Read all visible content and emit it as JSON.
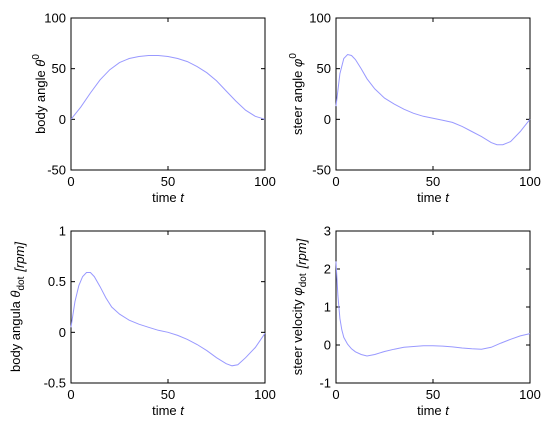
{
  "chart_data": [
    {
      "type": "line",
      "xlabel": {
        "main": "time ",
        "italic": "t"
      },
      "ylabel": {
        "main": "body angle ",
        "italic": "θ",
        "sup": "0"
      },
      "xlim": [
        0,
        100
      ],
      "ylim": [
        -50,
        100
      ],
      "xticks": [
        0,
        50,
        100
      ],
      "yticks": [
        -50,
        0,
        50,
        100
      ],
      "grid": false,
      "line_color": "#9999ff",
      "series": [
        {
          "x": [
            0,
            5,
            10,
            15,
            20,
            25,
            30,
            35,
            40,
            45,
            50,
            55,
            60,
            65,
            70,
            75,
            80,
            85,
            90,
            95,
            100
          ],
          "values": [
            0,
            12,
            26,
            39,
            49,
            56,
            60,
            62,
            63,
            63,
            62,
            60,
            57,
            52,
            46,
            38,
            28,
            18,
            9,
            3,
            0
          ]
        }
      ]
    },
    {
      "type": "line",
      "xlabel": {
        "main": "time ",
        "italic": "t"
      },
      "ylabel": {
        "main": "steer angle ",
        "italic": "φ",
        "sup": "0"
      },
      "xlim": [
        0,
        100
      ],
      "ylim": [
        -50,
        100
      ],
      "xticks": [
        0,
        50,
        100
      ],
      "yticks": [
        -50,
        0,
        50,
        100
      ],
      "grid": false,
      "line_color": "#9999ff",
      "series": [
        {
          "x": [
            0,
            2,
            4,
            6,
            8,
            10,
            13,
            16,
            20,
            25,
            30,
            35,
            40,
            45,
            50,
            55,
            60,
            65,
            70,
            75,
            80,
            83,
            86,
            90,
            95,
            100
          ],
          "values": [
            13,
            45,
            60,
            64,
            63,
            59,
            50,
            40,
            30,
            21,
            15,
            10,
            6,
            3,
            1,
            -1,
            -3,
            -7,
            -12,
            -17,
            -23,
            -25,
            -25,
            -22,
            -12,
            0
          ]
        }
      ]
    },
    {
      "type": "line",
      "xlabel": {
        "main": "time ",
        "italic": "t"
      },
      "ylabel": {
        "main": "body angula ",
        "italic": "θ",
        "sub": "dot",
        "unit": "[rpm]"
      },
      "xlim": [
        0,
        100
      ],
      "ylim": [
        -0.5,
        1
      ],
      "xticks": [
        0,
        50,
        100
      ],
      "yticks": [
        -0.5,
        0,
        0.5,
        1
      ],
      "grid": false,
      "line_color": "#9999ff",
      "series": [
        {
          "x": [
            0,
            2,
            4,
            6,
            8,
            10,
            12,
            15,
            18,
            21,
            25,
            30,
            35,
            40,
            45,
            50,
            55,
            60,
            65,
            70,
            75,
            80,
            83,
            86,
            90,
            95,
            100
          ],
          "values": [
            0.05,
            0.3,
            0.46,
            0.55,
            0.59,
            0.59,
            0.55,
            0.45,
            0.34,
            0.25,
            0.18,
            0.12,
            0.08,
            0.05,
            0.02,
            0,
            -0.03,
            -0.07,
            -0.12,
            -0.18,
            -0.25,
            -0.31,
            -0.33,
            -0.32,
            -0.25,
            -0.15,
            -0.01
          ]
        }
      ]
    },
    {
      "type": "line",
      "xlabel": {
        "main": "time ",
        "italic": "t"
      },
      "ylabel": {
        "main": "steer velocity ",
        "italic": "φ",
        "sub": "dot",
        "unit": "[rpm]"
      },
      "xlim": [
        0,
        100
      ],
      "ylim": [
        -1,
        3
      ],
      "xticks": [
        0,
        50,
        100
      ],
      "yticks": [
        -1,
        0,
        1,
        2,
        3
      ],
      "grid": false,
      "line_color": "#9999ff",
      "series": [
        {
          "x": [
            0,
            1,
            2,
            3,
            4,
            6,
            8,
            10,
            13,
            16,
            20,
            25,
            30,
            35,
            40,
            45,
            50,
            55,
            60,
            65,
            70,
            75,
            80,
            85,
            90,
            95,
            100
          ],
          "values": [
            2.2,
            1.3,
            0.7,
            0.4,
            0.2,
            0.02,
            -0.1,
            -0.18,
            -0.25,
            -0.29,
            -0.25,
            -0.17,
            -0.11,
            -0.06,
            -0.04,
            -0.02,
            -0.02,
            -0.03,
            -0.05,
            -0.08,
            -0.1,
            -0.11,
            -0.06,
            0.05,
            0.15,
            0.24,
            0.3
          ]
        }
      ]
    }
  ]
}
